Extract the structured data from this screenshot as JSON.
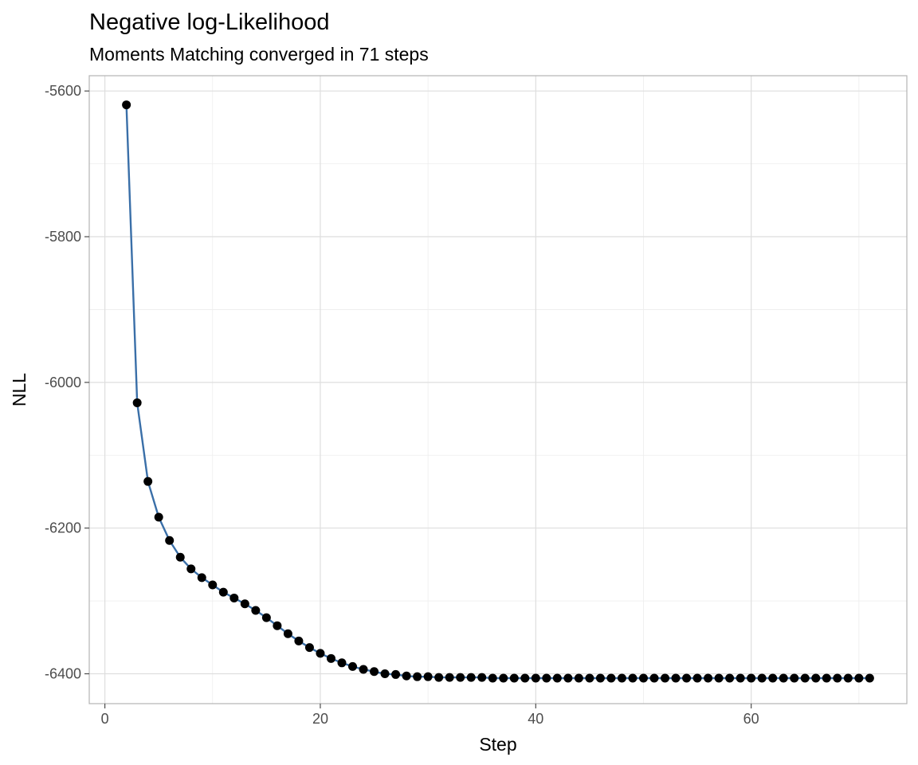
{
  "chart_data": {
    "type": "line",
    "title": "Negative log-Likelihood",
    "subtitle": "Moments Matching converged in 71 steps",
    "xlabel": "Step",
    "ylabel": "NLL",
    "xlim": [
      -1.45,
      74.45
    ],
    "ylim": [
      -6441,
      -5579
    ],
    "x_ticks": [
      0,
      20,
      40,
      60
    ],
    "y_ticks": [
      -5600,
      -5800,
      -6000,
      -6200,
      -6400
    ],
    "grid": true,
    "line_color": "#3a6fa8",
    "point_color": "#000000",
    "series": [
      {
        "x": [
          2,
          3,
          4,
          5,
          6,
          7,
          8,
          9,
          10,
          11,
          12,
          13,
          14,
          15,
          16,
          17,
          18,
          19,
          20,
          21,
          22,
          23,
          24,
          25,
          26,
          27,
          28,
          29,
          30,
          31,
          32,
          33,
          34,
          35,
          36,
          37,
          38,
          39,
          40,
          41,
          42,
          43,
          44,
          45,
          46,
          47,
          48,
          49,
          50,
          51,
          52,
          53,
          54,
          55,
          56,
          57,
          58,
          59,
          60,
          61,
          62,
          63,
          64,
          65,
          66,
          67,
          68,
          69,
          70,
          71
        ],
        "y": [
          -5619,
          -6028,
          -6136,
          -6185,
          -6217,
          -6240,
          -6256,
          -6268,
          -6278,
          -6288,
          -6296,
          -6304,
          -6313,
          -6323,
          -6334,
          -6345,
          -6355,
          -6364,
          -6372,
          -6379,
          -6385,
          -6390,
          -6394,
          -6397,
          -6400,
          -6401,
          -6403,
          -6404,
          -6404,
          -6405,
          -6405,
          -6405,
          -6405,
          -6405,
          -6406,
          -6406,
          -6406,
          -6406,
          -6406,
          -6406,
          -6406,
          -6406,
          -6406,
          -6406,
          -6406,
          -6406,
          -6406,
          -6406,
          -6406,
          -6406,
          -6406,
          -6406,
          -6406,
          -6406,
          -6406,
          -6406,
          -6406,
          -6406,
          -6406,
          -6406,
          -6406,
          -6406,
          -6406,
          -6406,
          -6406,
          -6406,
          -6406,
          -6406,
          -6406,
          -6406
        ]
      }
    ]
  }
}
